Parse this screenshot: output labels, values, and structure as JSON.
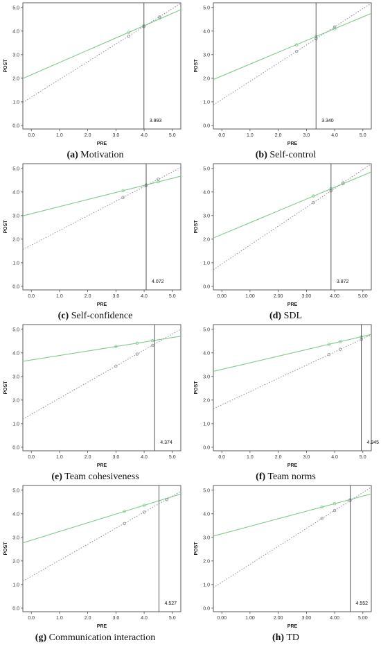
{
  "chart_data": [
    {
      "panel": "a",
      "caption_letter": "(a)",
      "caption_text": "Motivation",
      "type": "line",
      "xlabel": "PRE",
      "ylabel": "POST",
      "xlim": [
        -0.3,
        5.3
      ],
      "ylim": [
        -0.15,
        5.2
      ],
      "xticks": [
        0.0,
        1.0,
        2.0,
        3.0,
        4.0,
        5.0
      ],
      "xtick_decimals": 1,
      "yticks": [
        0.0,
        1.0,
        2.0,
        3.0,
        4.0,
        5.0
      ],
      "vline": 3.993,
      "vline_label": "3.993",
      "series": [
        {
          "style": "solid",
          "color": "#7fc98a",
          "intercept": 2.15,
          "slope": 0.52,
          "points": [
            [
              3.45,
              3.95
            ],
            [
              3.99,
              4.23
            ],
            [
              4.55,
              4.55
            ]
          ]
        },
        {
          "style": "dotted",
          "color": "#8a8a9a",
          "intercept": 1.2,
          "slope": 0.75,
          "points": [
            [
              3.45,
              3.78
            ],
            [
              3.99,
              4.19
            ],
            [
              4.55,
              4.6
            ]
          ]
        }
      ]
    },
    {
      "panel": "b",
      "caption_letter": "(b)",
      "caption_text": "Self-control",
      "type": "line",
      "xlabel": "PRE",
      "ylabel": "POST",
      "xlim": [
        -0.3,
        5.3
      ],
      "ylim": [
        -0.15,
        5.2
      ],
      "xticks": [
        0.0,
        1.0,
        2.0,
        3.0,
        4.0,
        5.0
      ],
      "xtick_decimals": 1,
      "yticks": [
        0.0,
        1.0,
        2.0,
        3.0,
        4.0,
        5.0
      ],
      "vline": 3.34,
      "vline_label": "3.340",
      "series": [
        {
          "style": "solid",
          "color": "#7fc98a",
          "intercept": 2.1,
          "slope": 0.5,
          "points": [
            [
              2.65,
              3.42
            ],
            [
              3.34,
              3.77
            ],
            [
              4.0,
              4.1
            ]
          ]
        },
        {
          "style": "dotted",
          "color": "#8a8a9a",
          "intercept": 1.1,
          "slope": 0.77,
          "points": [
            [
              2.65,
              3.14
            ],
            [
              3.34,
              3.67
            ],
            [
              4.0,
              4.18
            ]
          ]
        }
      ]
    },
    {
      "panel": "c",
      "caption_letter": "(c)",
      "caption_text": "Self-confidence",
      "type": "line",
      "xlabel": "PRE",
      "ylabel": "POST",
      "xlim": [
        -0.3,
        5.3
      ],
      "ylim": [
        -0.15,
        5.2
      ],
      "xticks": [
        0.0,
        1.0,
        2.0,
        3.0,
        4.0,
        5.0
      ],
      "xtick_decimals": 1,
      "yticks": [
        0.0,
        1.0,
        2.0,
        3.0,
        4.0,
        5.0
      ],
      "vline": 4.072,
      "vline_label": "4.072",
      "series": [
        {
          "style": "solid",
          "color": "#7fc98a",
          "intercept": 3.08,
          "slope": 0.3,
          "points": [
            [
              3.25,
              4.06
            ],
            [
              4.07,
              4.3
            ],
            [
              4.5,
              4.43
            ]
          ]
        },
        {
          "style": "dotted",
          "color": "#8a8a9a",
          "intercept": 1.75,
          "slope": 0.62,
          "points": [
            [
              3.25,
              3.77
            ],
            [
              4.07,
              4.27
            ],
            [
              4.5,
              4.54
            ]
          ]
        }
      ]
    },
    {
      "panel": "d",
      "caption_letter": "(d)",
      "caption_text": "SDL",
      "type": "line",
      "xlabel": "PRE",
      "ylabel": "POST",
      "xlim": [
        -0.3,
        5.3
      ],
      "ylim": [
        -0.15,
        5.2
      ],
      "xticks": [
        0.0,
        1.0,
        2.0,
        3.0,
        4.0,
        5.0
      ],
      "xtick_decimals": 2,
      "yticks": [
        0.0,
        1.0,
        2.0,
        3.0,
        4.0,
        5.0
      ],
      "vline": 3.872,
      "vline_label": "3.872",
      "series": [
        {
          "style": "solid",
          "color": "#7fc98a",
          "intercept": 2.2,
          "slope": 0.5,
          "points": [
            [
              3.25,
              3.83
            ],
            [
              3.87,
              4.14
            ],
            [
              4.3,
              4.35
            ]
          ]
        },
        {
          "style": "dotted",
          "color": "#8a8a9a",
          "intercept": 0.95,
          "slope": 0.8,
          "points": [
            [
              3.25,
              3.55
            ],
            [
              3.87,
              4.05
            ],
            [
              4.3,
              4.39
            ]
          ]
        }
      ]
    },
    {
      "panel": "e",
      "caption_letter": "(e)",
      "caption_text": "Team cohesiveness",
      "type": "line",
      "xlabel": "PRE",
      "ylabel": "POST",
      "xlim": [
        -0.3,
        5.3
      ],
      "ylim": [
        -0.15,
        5.2
      ],
      "xticks": [
        0.0,
        1.0,
        2.0,
        3.0,
        4.0,
        5.0
      ],
      "xtick_decimals": 1,
      "yticks": [
        0.0,
        1.0,
        2.0,
        3.0,
        4.0,
        5.0
      ],
      "vline": 4.374,
      "vline_label": "4.374",
      "series": [
        {
          "style": "solid",
          "color": "#7fc98a",
          "intercept": 3.7,
          "slope": 0.19,
          "points": [
            [
              3.0,
              4.27
            ],
            [
              3.75,
              4.41
            ],
            [
              4.3,
              4.52
            ]
          ]
        },
        {
          "style": "dotted",
          "color": "#8a8a9a",
          "intercept": 1.4,
          "slope": 0.68,
          "points": [
            [
              3.0,
              3.44
            ],
            [
              3.75,
              3.95
            ],
            [
              4.3,
              4.32
            ]
          ]
        }
      ]
    },
    {
      "panel": "f",
      "caption_letter": "(f)",
      "caption_text": "Team norms",
      "type": "line",
      "xlabel": "PRE",
      "ylabel": "POST",
      "xlim": [
        -0.3,
        5.3
      ],
      "ylim": [
        -0.15,
        5.2
      ],
      "xticks": [
        0.0,
        1.0,
        2.0,
        3.0,
        4.0,
        5.0
      ],
      "xtick_decimals": 1,
      "yticks": [
        0.0,
        1.0,
        2.0,
        3.0,
        4.0,
        5.0
      ],
      "vline": 4.945,
      "vline_label": "4.945",
      "series": [
        {
          "style": "solid",
          "color": "#7fc98a",
          "intercept": 3.3,
          "slope": 0.28,
          "points": [
            [
              3.8,
              4.36
            ],
            [
              4.2,
              4.48
            ],
            [
              4.95,
              4.68
            ]
          ]
        },
        {
          "style": "dotted",
          "color": "#8a8a9a",
          "intercept": 1.8,
          "slope": 0.56,
          "points": [
            [
              3.8,
              3.93
            ],
            [
              4.2,
              4.15
            ],
            [
              4.95,
              4.57
            ]
          ]
        }
      ]
    },
    {
      "panel": "g",
      "caption_letter": "(g)",
      "caption_text": "Communication interaction",
      "type": "line",
      "xlabel": "PRE",
      "ylabel": "POST",
      "xlim": [
        -0.3,
        5.3
      ],
      "ylim": [
        -0.15,
        5.2
      ],
      "xticks": [
        0.0,
        1.0,
        2.0,
        3.0,
        4.0,
        5.0
      ],
      "xtick_decimals": 1,
      "yticks": [
        0.0,
        1.0,
        2.0,
        3.0,
        4.0,
        5.0
      ],
      "vline": 4.527,
      "vline_label": "4.527",
      "series": [
        {
          "style": "solid",
          "color": "#7fc98a",
          "intercept": 2.88,
          "slope": 0.37,
          "points": [
            [
              3.3,
              4.1
            ],
            [
              4.0,
              4.36
            ],
            [
              4.8,
              4.6
            ]
          ]
        },
        {
          "style": "dotted",
          "color": "#8a8a9a",
          "intercept": 1.35,
          "slope": 0.68,
          "points": [
            [
              3.3,
              3.59
            ],
            [
              4.0,
              4.07
            ],
            [
              4.8,
              4.61
            ]
          ]
        }
      ]
    },
    {
      "panel": "h",
      "caption_letter": "(h)",
      "caption_text": "TD",
      "type": "line",
      "xlabel": "PRE",
      "ylabel": "POST",
      "xlim": [
        -0.3,
        5.3
      ],
      "ylim": [
        -0.15,
        5.2
      ],
      "xticks": [
        0.0,
        1.0,
        2.0,
        3.0,
        4.0,
        5.0
      ],
      "xtick_decimals": 2,
      "yticks": [
        0.0,
        1.0,
        2.0,
        3.0,
        4.0,
        5.0
      ],
      "vline": 4.552,
      "vline_label": "4.552",
      "series": [
        {
          "style": "solid",
          "color": "#7fc98a",
          "intercept": 3.15,
          "slope": 0.32,
          "points": [
            [
              3.55,
              4.29
            ],
            [
              4.0,
              4.43
            ],
            [
              4.55,
              4.6
            ]
          ]
        },
        {
          "style": "dotted",
          "color": "#8a8a9a",
          "intercept": 1.1,
          "slope": 0.76,
          "points": [
            [
              3.55,
              3.8
            ],
            [
              4.0,
              4.14
            ],
            [
              4.55,
              4.56
            ]
          ]
        }
      ]
    }
  ]
}
